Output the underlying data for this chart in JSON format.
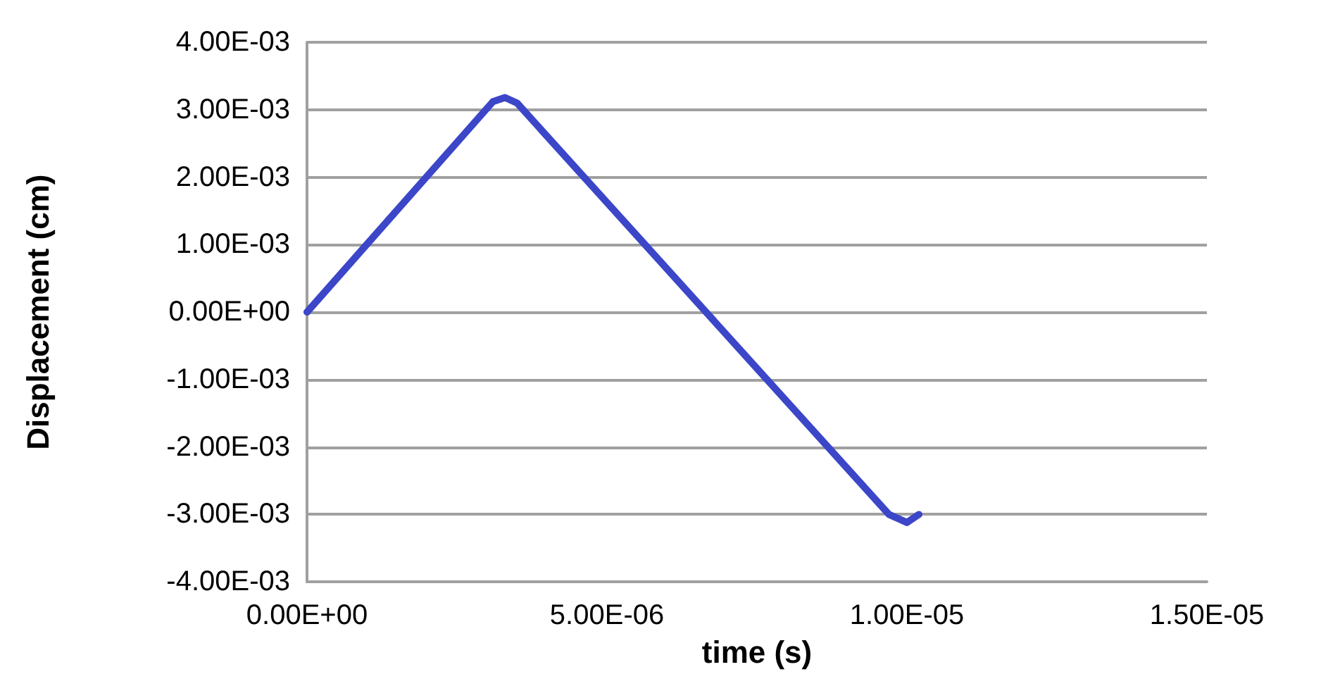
{
  "chart_data": {
    "type": "line",
    "xlabel": "time (s)",
    "ylabel": "Displacement (cm)",
    "xlim": [
      0,
      1.5e-05
    ],
    "xticks": [
      {
        "value": 0,
        "label": "0.00E+00"
      },
      {
        "value": 5e-06,
        "label": "5.00E-06"
      },
      {
        "value": 1e-05,
        "label": "1.00E-05"
      },
      {
        "value": 1.5e-05,
        "label": "1.50E-05"
      }
    ],
    "ylim": [
      -0.004,
      0.004
    ],
    "yticks": [
      {
        "value": -0.004,
        "label": "-4.00E-03"
      },
      {
        "value": -0.003,
        "label": "-3.00E-03"
      },
      {
        "value": -0.002,
        "label": "-2.00E-03"
      },
      {
        "value": -0.001,
        "label": "-1.00E-03"
      },
      {
        "value": 0,
        "label": "0.00E+00"
      },
      {
        "value": 0.001,
        "label": "1.00E-03"
      },
      {
        "value": 0.002,
        "label": "2.00E-03"
      },
      {
        "value": 0.003,
        "label": "3.00E-03"
      },
      {
        "value": 0.004,
        "label": "4.00E-03"
      }
    ],
    "grid": "y",
    "marker": "none",
    "line_style": "solid",
    "series": [
      {
        "color": "#3c46c8",
        "x": [
          0,
          3.1e-06,
          3.3e-06,
          3.5e-06,
          9.7e-06,
          1e-05,
          1.02e-05
        ],
        "values": [
          0,
          0.00312,
          0.00318,
          0.0031,
          -0.003,
          -0.00312,
          -0.003
        ]
      }
    ]
  }
}
